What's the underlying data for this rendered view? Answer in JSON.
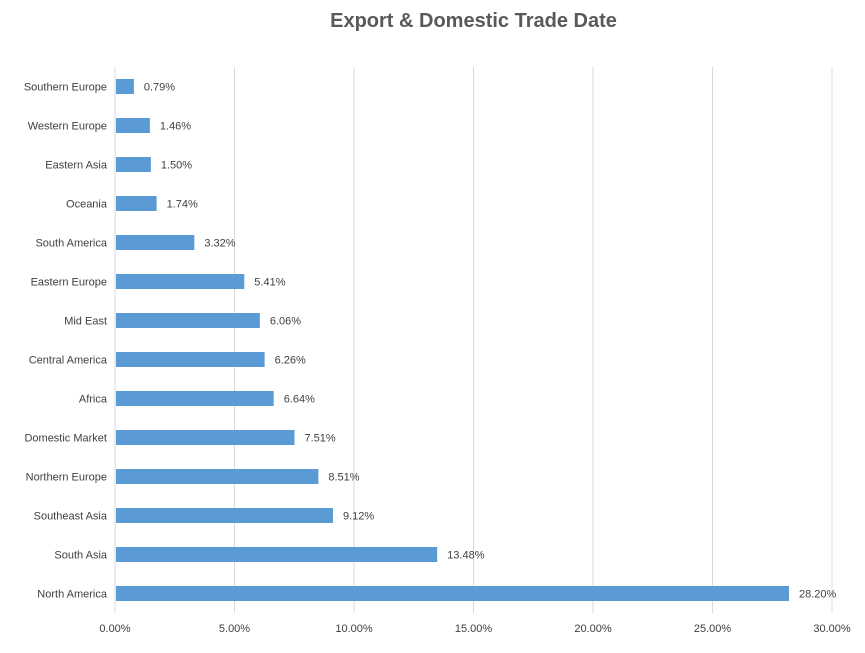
{
  "chart_data": {
    "type": "bar",
    "orientation": "horizontal",
    "title": "Export & Domestic Trade Date",
    "xlabel": "",
    "ylabel": "",
    "categories": [
      "Southern Europe",
      "Western Europe",
      "Eastern Asia",
      "Oceania",
      "South America",
      "Eastern Europe",
      "Mid East",
      "Central America",
      "Africa",
      "Domestic Market",
      "Northern Europe",
      "Southeast Asia",
      "South Asia",
      "North America"
    ],
    "values": [
      0.79,
      1.46,
      1.5,
      1.74,
      3.32,
      5.41,
      6.06,
      6.26,
      6.64,
      7.51,
      8.51,
      9.12,
      13.48,
      28.2
    ],
    "data_labels": [
      "0.79%",
      "1.46%",
      "1.50%",
      "1.74%",
      "3.32%",
      "5.41%",
      "6.06%",
      "6.26%",
      "6.64%",
      "7.51%",
      "8.51%",
      "9.12%",
      "13.48%",
      "28.20%"
    ],
    "xlim": [
      0,
      30
    ],
    "x_ticks": [
      0,
      5,
      10,
      15,
      20,
      25,
      30
    ],
    "x_tick_labels": [
      "0.00%",
      "5.00%",
      "10.00%",
      "15.00%",
      "20.00%",
      "25.00%",
      "30.00%"
    ],
    "grid": "vertical",
    "legend": "none",
    "bar_color": "#5B9BD5",
    "grid_color": "#D9D9D9"
  }
}
